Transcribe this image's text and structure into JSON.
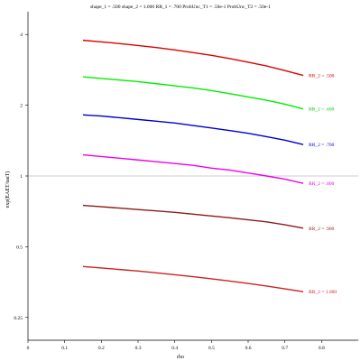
{
  "chart_data": {
    "type": "line",
    "title": "shape_1 = .500  shape_2 = 1.000  RR_1 = .700  ProbUnc_T1 = .50e-1  ProbUnc_T2 = .50e-1",
    "xlabel": "rho",
    "ylabel": "exp(EAET/tauT)",
    "xlim": [
      0,
      0.9
    ],
    "ylim": [
      0.2,
      5.0
    ],
    "y_scale": "log",
    "x_ticks": [
      0,
      0.1,
      0.2,
      0.3,
      0.4,
      0.5,
      0.6,
      0.7,
      0.8
    ],
    "x_tick_labels": [
      "0",
      "0.1",
      "0.2",
      "0.3",
      "0.4",
      "0.5",
      "0.6",
      "0.7",
      "0.8"
    ],
    "y_ticks": [
      0.25,
      0.5,
      1,
      2,
      4
    ],
    "y_tick_labels": [
      "0.25",
      "0.5",
      "1",
      "2",
      "4"
    ],
    "reference_line": {
      "y": 1,
      "color": "#bbbbbb"
    },
    "x": [
      0.15,
      0.2,
      0.25,
      0.3,
      0.35,
      0.4,
      0.45,
      0.5,
      0.55,
      0.6,
      0.65,
      0.7,
      0.75
    ],
    "series": [
      {
        "name": "RR_2 = .500",
        "color": "#dd0000",
        "label_color": "#cc0000",
        "values": [
          3.78,
          3.72,
          3.66,
          3.59,
          3.52,
          3.44,
          3.35,
          3.26,
          3.16,
          3.05,
          2.94,
          2.81,
          2.68
        ]
      },
      {
        "name": "RR_2 = .600",
        "color": "#00ee00",
        "label_color": "#00cc00",
        "values": [
          2.64,
          2.6,
          2.56,
          2.52,
          2.47,
          2.42,
          2.37,
          2.31,
          2.24,
          2.17,
          2.1,
          2.02,
          1.93
        ]
      },
      {
        "name": "RR_2 = .700",
        "color": "#0000cc",
        "label_color": "#0000cc",
        "values": [
          1.82,
          1.8,
          1.77,
          1.74,
          1.71,
          1.68,
          1.64,
          1.6,
          1.56,
          1.52,
          1.47,
          1.42,
          1.36
        ]
      },
      {
        "name": "RR_2 = .800",
        "color": "#ee00ee",
        "label_color": "#dd00dd",
        "values": [
          1.23,
          1.21,
          1.19,
          1.17,
          1.15,
          1.13,
          1.11,
          1.08,
          1.06,
          1.03,
          1.0,
          0.97,
          0.93
        ]
      },
      {
        "name": "RR_2 = .900",
        "color": "#8b1a1a",
        "label_color": "#8b1a1a",
        "values": [
          0.75,
          0.74,
          0.73,
          0.72,
          0.71,
          0.7,
          0.688,
          0.676,
          0.664,
          0.651,
          0.638,
          0.62,
          0.6
        ]
      },
      {
        "name": "RR_2 = 1.000",
        "color": "#cc2222",
        "label_color": "#cc2222",
        "values": [
          0.412,
          0.406,
          0.4,
          0.394,
          0.387,
          0.38,
          0.373,
          0.365,
          0.357,
          0.349,
          0.34,
          0.331,
          0.322
        ]
      }
    ]
  }
}
